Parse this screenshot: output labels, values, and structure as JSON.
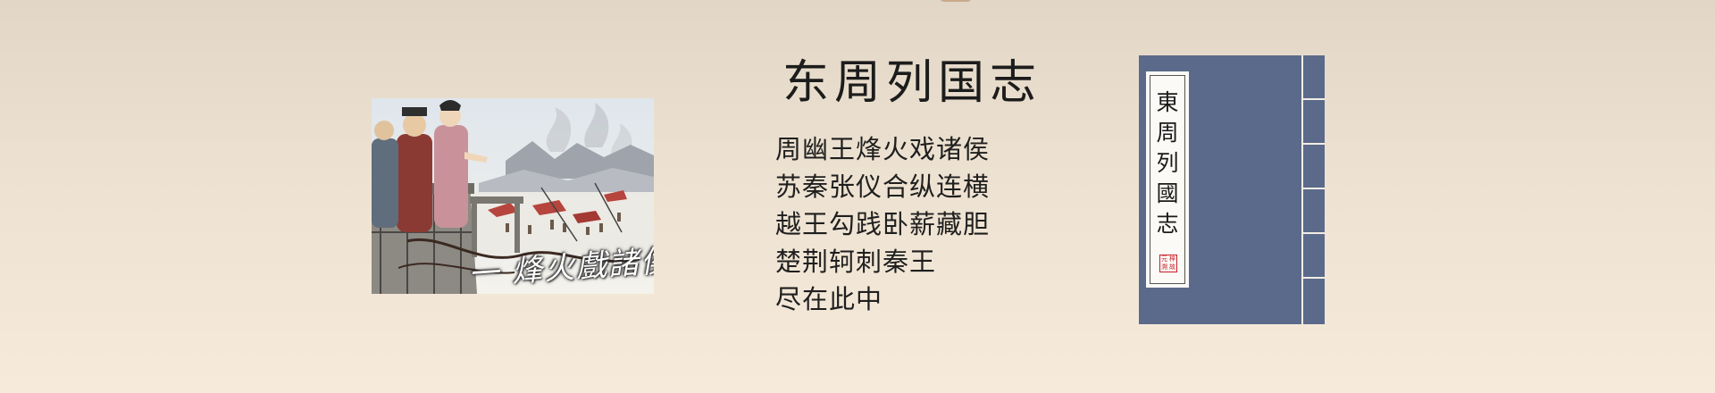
{
  "title": "东周列国志",
  "lines": [
    "周幽王烽火戏诸侯",
    "苏秦张仪合纵连横",
    "越王勾践卧薪藏胆",
    "楚荆轲刺秦王",
    "尽在此中"
  ],
  "illustration": {
    "caption": "一 烽火戲諸侯"
  },
  "book_cover": {
    "label_chars": [
      "東",
      "周",
      "列",
      "國",
      "志"
    ],
    "seal_chars": [
      "梓",
      "元",
      "故",
      "溯"
    ],
    "cover_color": "#5b6a8b",
    "binding_color": "#f2ede4",
    "seal_color": "#c81d25"
  },
  "background": {
    "top": "#e2d6c6",
    "bottom": "#f6eadb"
  }
}
